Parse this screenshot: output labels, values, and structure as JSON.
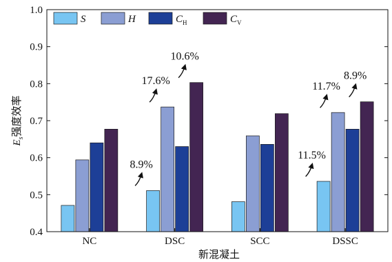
{
  "chart_data": {
    "type": "bar",
    "categories": [
      "NC",
      "DSC",
      "SCC",
      "DSSC"
    ],
    "series": [
      {
        "name": "S",
        "values": [
          0.471,
          0.511,
          0.481,
          0.536
        ],
        "color": "#78c5f2"
      },
      {
        "name": "H",
        "values": [
          0.594,
          0.737,
          0.659,
          0.722
        ],
        "color": "#8b9ed3"
      },
      {
        "name": "C",
        "subscript": "H",
        "values": [
          0.64,
          0.63,
          0.636,
          0.677
        ],
        "color": "#1d3f97"
      },
      {
        "name": "C",
        "subscript": "V",
        "values": [
          0.677,
          0.803,
          0.719,
          0.751
        ],
        "color": "#432552"
      }
    ],
    "xlabel": "新混凝土",
    "ylabel": "强度效率",
    "ylabel_prefix": "E",
    "ylabel_subscript": "s",
    "ylim": [
      0.4,
      1.0
    ],
    "yticks": [
      "0.4",
      "0.5",
      "0.6",
      "0.7",
      "0.8",
      "0.9",
      "1.0"
    ],
    "legend_position": "top-left",
    "grid": false,
    "annotations": [
      {
        "text": "8.9%",
        "category": "DSC",
        "series": 0
      },
      {
        "text": "17.6%",
        "category": "DSC",
        "series": 1
      },
      {
        "text": "10.6%",
        "category": "DSC",
        "series": 3
      },
      {
        "text": "11.5%",
        "category": "DSSC",
        "series": 0
      },
      {
        "text": "11.7%",
        "category": "DSSC",
        "series": 1
      },
      {
        "text": "8.9%",
        "category": "DSSC",
        "series": 3
      }
    ]
  }
}
